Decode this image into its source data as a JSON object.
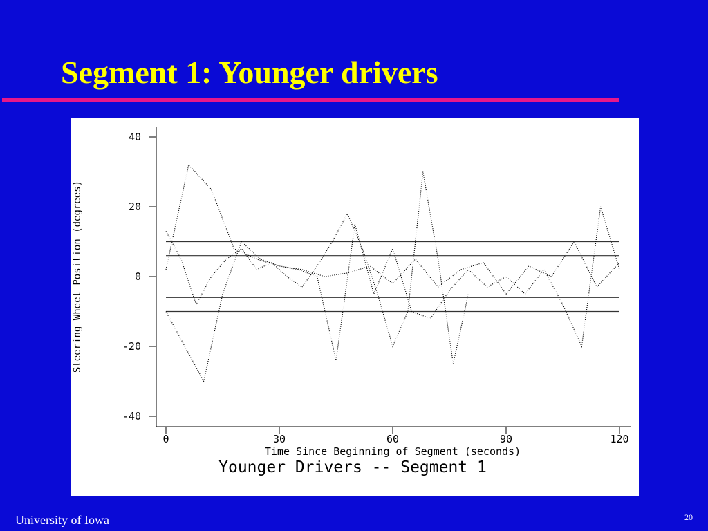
{
  "slide": {
    "title": "Segment 1: Younger drivers",
    "footer": "University of Iowa",
    "page_number": "20"
  },
  "chart_data": {
    "type": "line",
    "title": "Younger Drivers -- Segment 1",
    "xlabel": "Time Since Beginning of Segment (seconds)",
    "ylabel": "Steering Wheel Position (degrees)",
    "xlim": [
      0,
      120
    ],
    "ylim": [
      -40,
      40
    ],
    "xticks": [
      0,
      30,
      60,
      90,
      120
    ],
    "yticks": [
      -40,
      -20,
      0,
      20,
      40
    ],
    "hlines": [
      10,
      6,
      -6,
      -10
    ],
    "color": "#000000",
    "series": [
      {
        "x": [
          0,
          4,
          8,
          12,
          16,
          20,
          24,
          28,
          32,
          36,
          40,
          44,
          48,
          52,
          56,
          60,
          64,
          68,
          72,
          76,
          80
        ],
        "values": [
          13,
          5,
          -8,
          0,
          5,
          8,
          2,
          4,
          0,
          -3,
          3,
          10,
          18,
          8,
          -5,
          -20,
          -10,
          30,
          5,
          -25,
          -5
        ]
      },
      {
        "x": [
          0,
          5,
          10,
          15,
          20,
          25,
          30,
          35,
          40,
          45,
          50,
          55,
          60,
          65,
          70,
          75,
          80,
          85,
          90,
          95,
          100,
          105,
          110,
          115,
          120
        ],
        "values": [
          -10,
          -20,
          -30,
          -5,
          10,
          5,
          3,
          2,
          0,
          -24,
          15,
          -5,
          8,
          -10,
          -12,
          -4,
          2,
          -3,
          0,
          -5,
          2,
          -8,
          -20,
          20,
          2
        ]
      },
      {
        "x": [
          0,
          6,
          12,
          18,
          24,
          30,
          36,
          42,
          48,
          54,
          60,
          66,
          72,
          78,
          84,
          90,
          96,
          102,
          108,
          114,
          120
        ],
        "values": [
          2,
          32,
          25,
          8,
          5,
          3,
          2,
          0,
          1,
          3,
          -2,
          5,
          -3,
          2,
          4,
          -5,
          3,
          0,
          10,
          -3,
          4
        ]
      }
    ]
  }
}
